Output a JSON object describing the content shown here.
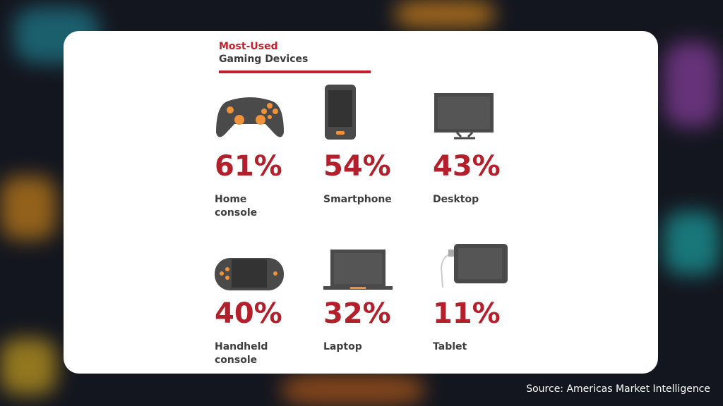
{
  "header": {
    "title_line1": "Most-Used",
    "title_line2": "Gaming Devices"
  },
  "items": [
    {
      "value": "61%",
      "label": "Home console"
    },
    {
      "value": "54%",
      "label": "Smartphone"
    },
    {
      "value": "43%",
      "label": "Desktop"
    },
    {
      "value": "40%",
      "label": "Handheld console"
    },
    {
      "value": "32%",
      "label": "Laptop"
    },
    {
      "value": "11%",
      "label": "Tablet"
    }
  ],
  "source": "Source: Americas Market Intelligence"
}
